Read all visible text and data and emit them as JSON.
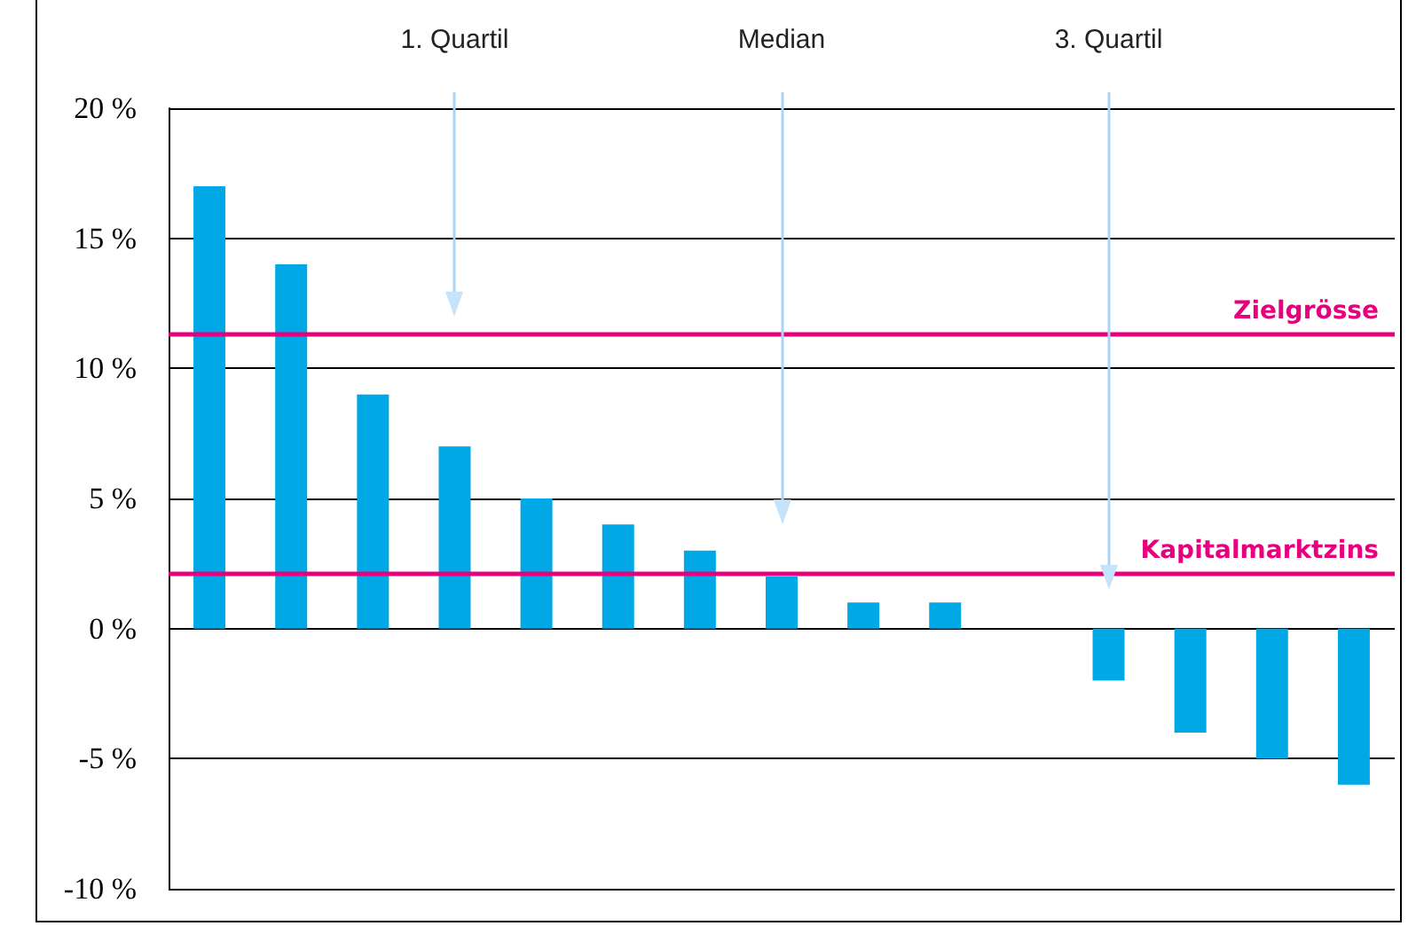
{
  "chart_data": {
    "type": "bar",
    "categories": [
      null,
      null,
      null,
      null,
      null,
      null,
      null,
      null,
      null,
      null,
      null,
      null,
      null,
      null,
      null
    ],
    "values": [
      17,
      14,
      9,
      7,
      5,
      4,
      3,
      2,
      1,
      1,
      0,
      -2,
      -4,
      -5,
      -6
    ],
    "color": "#00a8e6",
    "ylim": [
      -10,
      20
    ],
    "yticks": [
      {
        "value": -10,
        "label": "-10 %"
      },
      {
        "value": -5,
        "label": "-5 %"
      },
      {
        "value": 0,
        "label": "0 %"
      },
      {
        "value": 5,
        "label": "5 %"
      },
      {
        "value": 10,
        "label": "10 %"
      },
      {
        "value": 15,
        "label": "15 %"
      },
      {
        "value": 20,
        "label": "20 %"
      }
    ],
    "grid": "y",
    "tick_labels": "y",
    "ref_lines": [
      {
        "axis": "y",
        "value": 11.3,
        "label": "Zielgrösse",
        "color": "#e6007e"
      },
      {
        "axis": "y",
        "value": 2.1,
        "label": "Kapitalmarktzins",
        "color": "#e6007e"
      }
    ],
    "annotations": [
      "1. Quartil",
      "Median",
      "3. Quartil"
    ]
  }
}
